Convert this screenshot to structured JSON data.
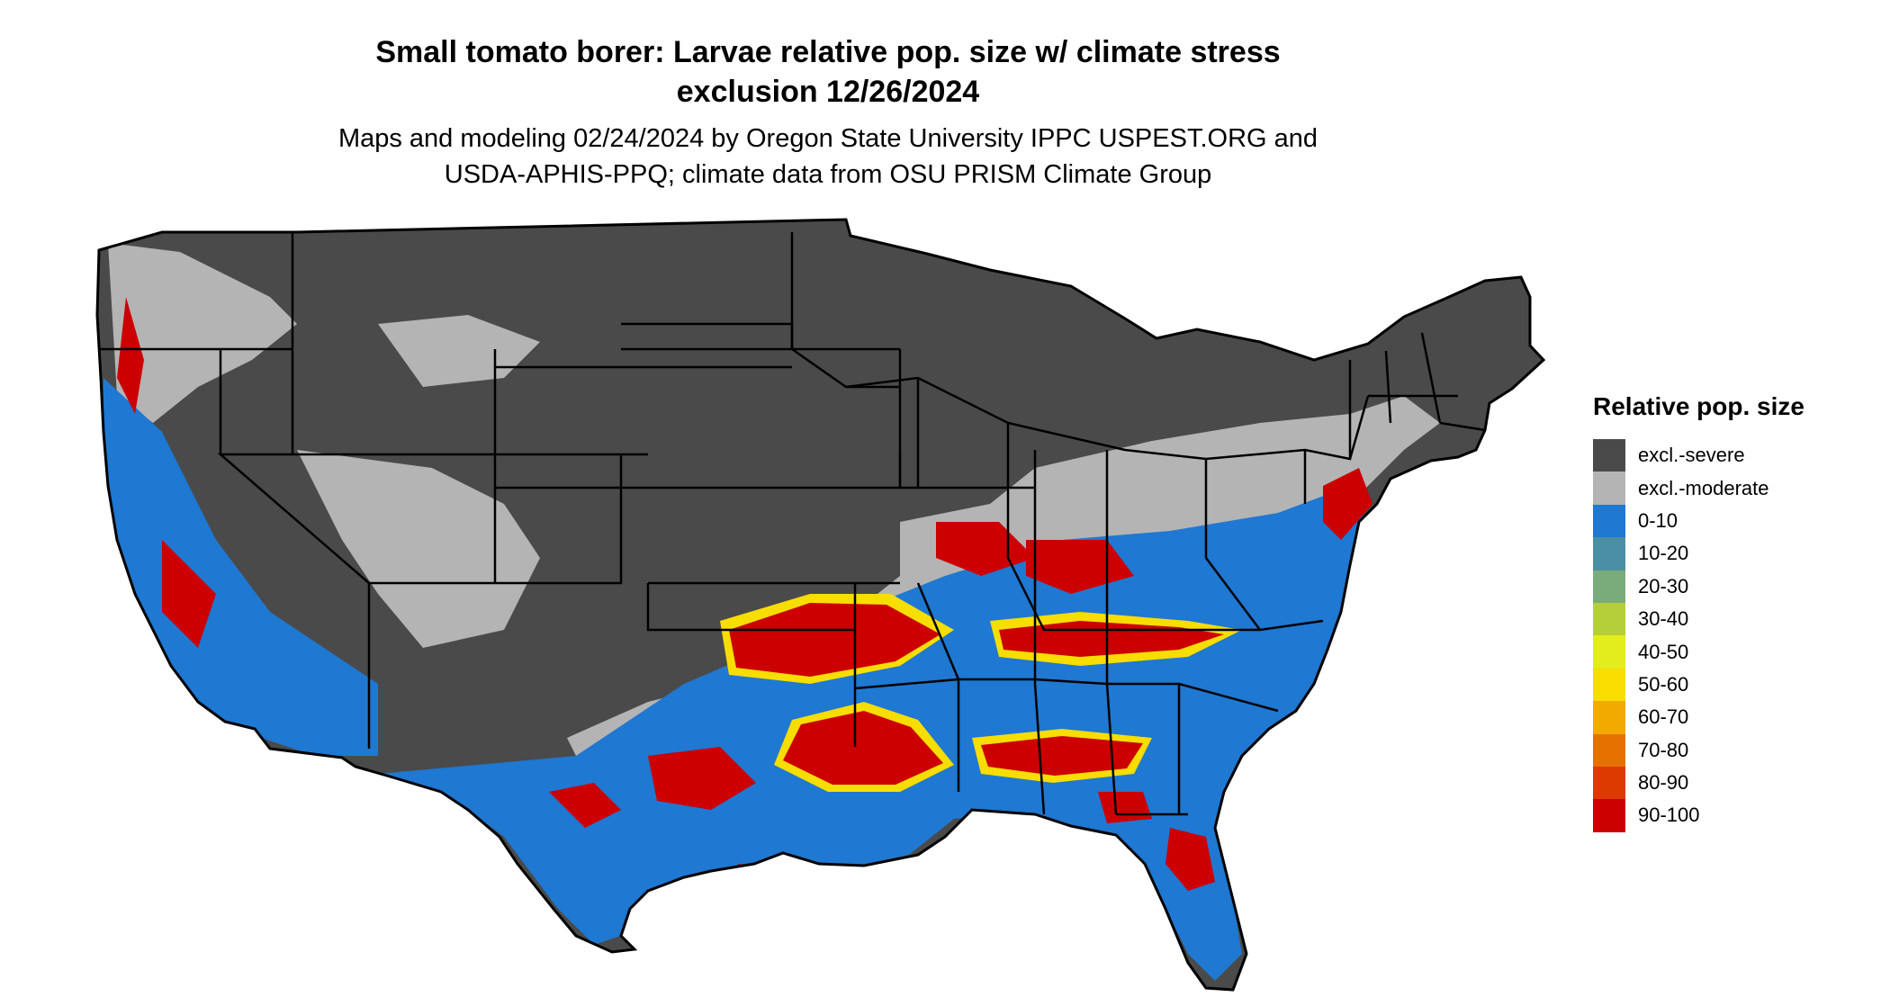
{
  "title": {
    "line1": "Small tomato borer: Larvae relative pop. size w/ climate stress",
    "line2": "exclusion 12/26/2024"
  },
  "subtitle": {
    "line1": "Maps and modeling 02/24/2024 by Oregon State University IPPC USPEST.ORG and",
    "line2": "USDA-APHIS-PPQ; climate data from OSU PRISM Climate Group"
  },
  "legend": {
    "title": "Relative pop. size",
    "items": [
      {
        "label": "excl.-severe",
        "color": "#4a4a4a"
      },
      {
        "label": "excl.-moderate",
        "color": "#b4b4b4"
      },
      {
        "label": "0-10",
        "color": "#1f78d1"
      },
      {
        "label": "10-20",
        "color": "#4a8fa3"
      },
      {
        "label": "20-30",
        "color": "#7aab7a"
      },
      {
        "label": "30-40",
        "color": "#b4cf3a"
      },
      {
        "label": "40-50",
        "color": "#e3ec1c"
      },
      {
        "label": "50-60",
        "color": "#f7dd00"
      },
      {
        "label": "60-70",
        "color": "#f2a900"
      },
      {
        "label": "70-80",
        "color": "#e57200"
      },
      {
        "label": "80-90",
        "color": "#dc3a00"
      },
      {
        "label": "90-100",
        "color": "#cc0000"
      }
    ]
  }
}
